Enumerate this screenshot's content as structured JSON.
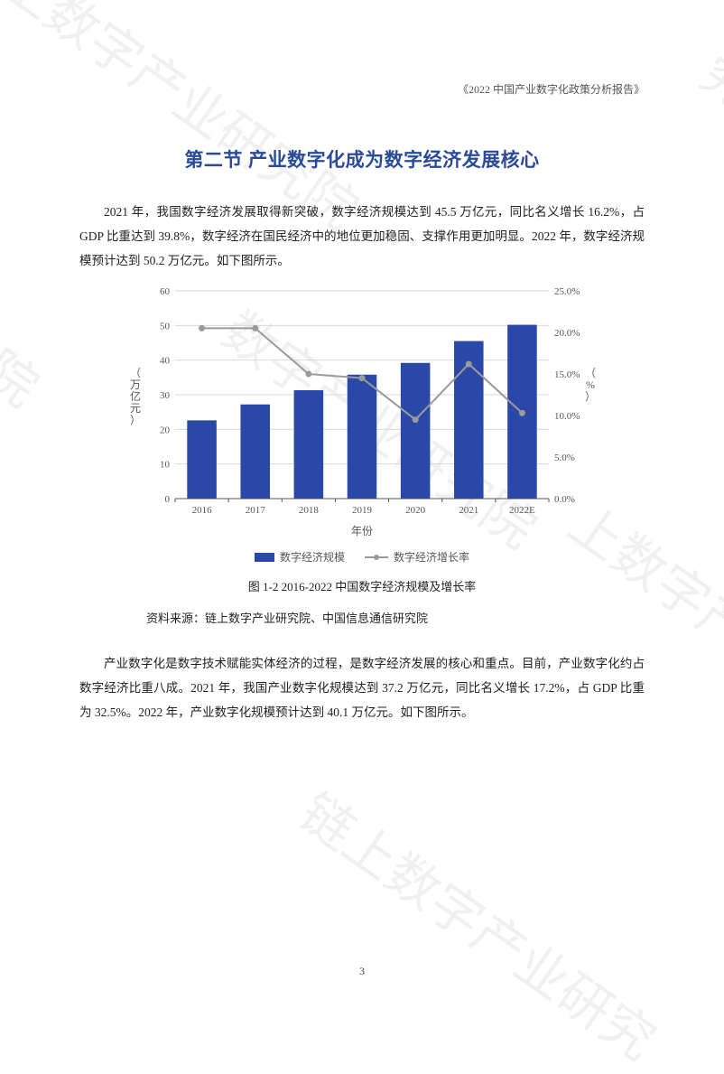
{
  "header": {
    "title": "《2022 中国产业数字化政策分析报告》"
  },
  "section": {
    "title": "第二节 产业数字化成为数字经济发展核心"
  },
  "paragraphs": {
    "p1": "2021 年，我国数字经济发展取得新突破，数字经济规模达到 45.5 万亿元，同比名义增长 16.2%，占 GDP 比重达到 39.8%，数字经济在国民经济中的地位更加稳固、支撑作用更加明显。2022 年，数字经济规模预计达到 50.2 万亿元。如下图所示。",
    "p2": "产业数字化是数字技术赋能实体经济的过程，是数字经济发展的核心和重点。目前，产业数字化约占数字经济比重八成。2021 年，我国产业数字化规模达到 37.2 万亿元，同比名义增长 17.2%，占 GDP 比重为 32.5%。2022 年，产业数字化规模预计达到 40.1 万亿元。如下图所示。"
  },
  "chart": {
    "type": "bar+line",
    "categories": [
      "2016",
      "2017",
      "2018",
      "2019",
      "2020",
      "2021",
      "2022E"
    ],
    "bar_values": [
      22.6,
      27.2,
      31.3,
      35.8,
      39.2,
      45.5,
      50.2
    ],
    "line_values": [
      20.5,
      20.5,
      15.0,
      14.5,
      9.5,
      16.2,
      10.3
    ],
    "y_left": {
      "min": 0,
      "max": 60,
      "step": 10,
      "label": "（万亿元）"
    },
    "y_right": {
      "min": 0,
      "max": 25,
      "step": 5,
      "label": "（%）",
      "tick_labels": [
        "0.0%",
        "5.0%",
        "10.0%",
        "15.0%",
        "20.0%",
        "25.0%"
      ]
    },
    "x_label": "年份",
    "colors": {
      "bar": "#2a48a8",
      "line": "#9a9a9a",
      "grid": "#d8d8d8",
      "axis_text": "#555555",
      "background": "#ffffff"
    },
    "bar_width": 0.55,
    "tick_fontsize": 11,
    "label_fontsize": 12,
    "legend": {
      "bar_label": "数字经济规模",
      "line_label": "数字经济增长率"
    }
  },
  "figure": {
    "caption": "图 1-2 2016-2022 中国数字经济规模及增长率",
    "source": "资料来源：链上数字产业研究院、中国信息通信研究院"
  },
  "page_number": "3",
  "watermark": {
    "text": "链上数字产业研究院",
    "fragments": [
      "上数字产业研究院",
      "链上数字产业研究",
      "研究院",
      "数字产业研究院",
      "链上数字产业研究",
      "院",
      "究"
    ]
  }
}
